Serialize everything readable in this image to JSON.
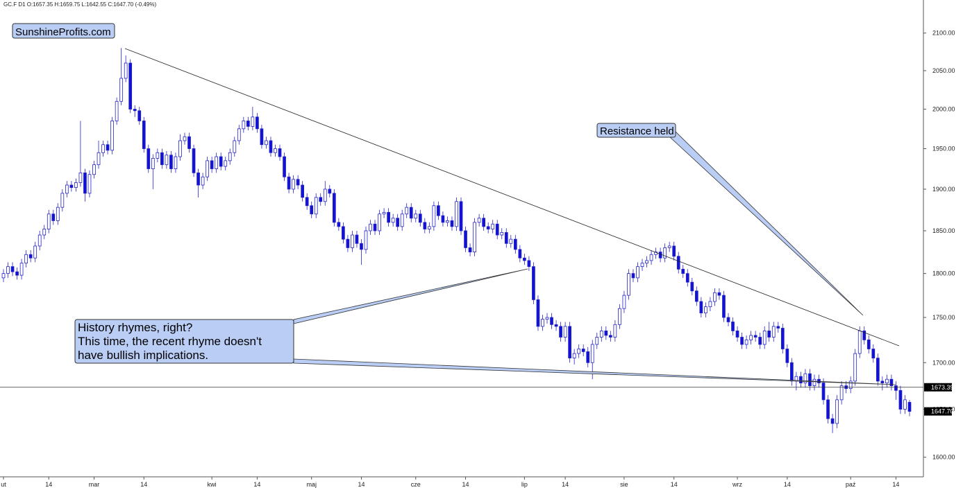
{
  "chart_data": {
    "type": "candlestick",
    "header": "GC.F  D1  O:1657.35  H:1659.75  L:1642.55  C:1647.70  (-0.49%)",
    "watermark": "SunshineProfits.com",
    "annotations": [
      "Resistance held",
      "History rhymes, right?",
      "This time, the recent rhyme doesn't",
      "have bullish implications."
    ],
    "log_scale": true,
    "up_color": "#ffffff",
    "down_color": "#1212d4",
    "outline_color": "#2323c8",
    "ylim": [
      1580,
      2145
    ],
    "yticks": [
      {
        "value": 1600,
        "label": "1600.00"
      },
      {
        "value": 1650,
        "label": "1650.00"
      },
      {
        "value": 1700,
        "label": "1700.00"
      },
      {
        "value": 1750,
        "label": "1750.00"
      },
      {
        "value": 1800,
        "label": "1800.00"
      },
      {
        "value": 1850,
        "label": "1850.00"
      },
      {
        "value": 1900,
        "label": "1900.00"
      },
      {
        "value": 1950,
        "label": "1950.00"
      },
      {
        "value": 2000,
        "label": "2000.00"
      },
      {
        "value": 2050,
        "label": "2050.00"
      },
      {
        "value": 2100,
        "label": "2100.00"
      }
    ],
    "hline": {
      "value": 1673.39,
      "label": "1673.39"
    },
    "last_label": "1647.70",
    "categories": [
      "ut",
      null,
      null,
      null,
      null,
      null,
      null,
      null,
      null,
      null,
      "14",
      null,
      null,
      null,
      null,
      null,
      null,
      null,
      null,
      null,
      "mar",
      null,
      null,
      null,
      null,
      null,
      null,
      null,
      null,
      null,
      null,
      "14",
      null,
      null,
      null,
      null,
      null,
      null,
      null,
      null,
      null,
      null,
      null,
      null,
      null,
      null,
      "kwi",
      null,
      null,
      null,
      null,
      null,
      null,
      null,
      null,
      null,
      "14",
      null,
      null,
      null,
      null,
      null,
      null,
      null,
      null,
      null,
      null,
      null,
      "maj",
      null,
      null,
      null,
      null,
      null,
      null,
      null,
      null,
      null,
      null,
      "14",
      null,
      null,
      null,
      null,
      null,
      null,
      null,
      null,
      null,
      null,
      null,
      "cze",
      null,
      null,
      null,
      null,
      null,
      null,
      null,
      null,
      null,
      null,
      "14",
      null,
      null,
      null,
      null,
      null,
      null,
      null,
      null,
      null,
      null,
      null,
      null,
      "lip",
      null,
      null,
      null,
      null,
      null,
      null,
      null,
      null,
      "14",
      null,
      null,
      null,
      null,
      null,
      null,
      null,
      null,
      null,
      null,
      null,
      null,
      "sie",
      null,
      null,
      null,
      null,
      null,
      null,
      null,
      null,
      null,
      null,
      "14",
      null,
      null,
      null,
      null,
      null,
      null,
      null,
      null,
      null,
      null,
      null,
      null,
      null,
      "wrz",
      null,
      null,
      null,
      null,
      null,
      null,
      null,
      null,
      null,
      null,
      "14",
      null,
      null,
      null,
      null,
      null,
      null,
      null,
      null,
      null,
      null,
      null,
      null,
      null,
      "paź",
      null,
      null,
      null,
      null,
      null,
      null,
      null,
      null,
      null,
      "14",
      null,
      null,
      null
    ],
    "open": [
      1795,
      1800,
      1808,
      1802,
      1798,
      1812,
      1822,
      1818,
      1832,
      1845,
      1852,
      1870,
      1862,
      1878,
      1895,
      1905,
      1902,
      1908,
      1920,
      1895,
      1918,
      1930,
      1945,
      1955,
      1948,
      1985,
      2010,
      2040,
      2060,
      2000,
      1998,
      1985,
      1950,
      1925,
      1938,
      1945,
      1930,
      1942,
      1925,
      1940,
      1960,
      1965,
      1950,
      1920,
      1905,
      1915,
      1935,
      1925,
      1940,
      1928,
      1935,
      1945,
      1960,
      1975,
      1985,
      1978,
      1990,
      1975,
      1955,
      1960,
      1945,
      1950,
      1940,
      1915,
      1900,
      1912,
      1905,
      1890,
      1880,
      1870,
      1890,
      1885,
      1900,
      1895,
      1860,
      1855,
      1840,
      1830,
      1845,
      1835,
      1828,
      1850,
      1858,
      1850,
      1870,
      1872,
      1860,
      1865,
      1855,
      1870,
      1878,
      1865,
      1870,
      1860,
      1852,
      1855,
      1880,
      1868,
      1860,
      1862,
      1855,
      1885,
      1850,
      1830,
      1825,
      1860,
      1865,
      1855,
      1852,
      1858,
      1845,
      1848,
      1835,
      1840,
      1828,
      1818,
      1815,
      1808,
      1770,
      1740,
      1748,
      1750,
      1742,
      1740,
      1728,
      1740,
      1705,
      1710,
      1715,
      1712,
      1700,
      1720,
      1728,
      1735,
      1730,
      1728,
      1742,
      1760,
      1775,
      1800,
      1795,
      1808,
      1812,
      1815,
      1822,
      1825,
      1818,
      1830,
      1832,
      1820,
      1805,
      1800,
      1790,
      1780,
      1768,
      1755,
      1762,
      1768,
      1778,
      1775,
      1750,
      1745,
      1735,
      1728,
      1720,
      1725,
      1730,
      1728,
      1720,
      1735,
      1728,
      1740,
      1738,
      1715,
      1700,
      1680,
      1685,
      1678,
      1688,
      1675,
      1682,
      1678,
      1660,
      1640,
      1635,
      1660,
      1675,
      1672,
      1680,
      1710,
      1735,
      1725,
      1715,
      1705,
      1680,
      1678,
      1682,
      1675,
      1670,
      1650,
      1657.35
    ],
    "high": [
      1805,
      1813,
      1813,
      1807,
      1817,
      1827,
      1827,
      1837,
      1850,
      1857,
      1875,
      1875,
      1883,
      1900,
      1910,
      1910,
      1913,
      1985,
      1925,
      1923,
      1935,
      1960,
      1960,
      1960,
      1990,
      2015,
      2080,
      2070,
      2065,
      2005,
      2003,
      1990,
      1955,
      1943,
      1950,
      1950,
      1947,
      1947,
      1945,
      1968,
      1970,
      1970,
      1955,
      1925,
      1920,
      1940,
      1940,
      1945,
      1945,
      1940,
      1950,
      1965,
      1980,
      1990,
      1990,
      2003,
      1995,
      1980,
      1965,
      1965,
      1955,
      1955,
      1945,
      1920,
      1917,
      1917,
      1910,
      1895,
      1885,
      1895,
      1895,
      1910,
      1905,
      1900,
      1865,
      1860,
      1845,
      1850,
      1850,
      1840,
      1855,
      1863,
      1863,
      1875,
      1877,
      1877,
      1870,
      1870,
      1875,
      1883,
      1883,
      1875,
      1875,
      1865,
      1860,
      1885,
      1885,
      1873,
      1867,
      1867,
      1890,
      1890,
      1855,
      1835,
      1865,
      1870,
      1870,
      1860,
      1863,
      1863,
      1853,
      1853,
      1845,
      1845,
      1833,
      1823,
      1820,
      1813,
      1775,
      1753,
      1755,
      1755,
      1747,
      1745,
      1745,
      1745,
      1715,
      1720,
      1720,
      1717,
      1725,
      1733,
      1740,
      1740,
      1735,
      1747,
      1765,
      1780,
      1805,
      1805,
      1813,
      1817,
      1820,
      1827,
      1830,
      1830,
      1835,
      1837,
      1837,
      1825,
      1810,
      1805,
      1795,
      1785,
      1773,
      1767,
      1773,
      1783,
      1783,
      1780,
      1755,
      1750,
      1740,
      1733,
      1730,
      1735,
      1735,
      1733,
      1740,
      1745,
      1745,
      1745,
      1743,
      1720,
      1705,
      1690,
      1690,
      1693,
      1693,
      1687,
      1687,
      1683,
      1665,
      1645,
      1665,
      1680,
      1680,
      1685,
      1715,
      1740,
      1740,
      1730,
      1720,
      1710,
      1685,
      1687,
      1687,
      1680,
      1675,
      1665,
      1659.75
    ],
    "low": [
      1790,
      1795,
      1797,
      1793,
      1793,
      1807,
      1813,
      1813,
      1827,
      1840,
      1847,
      1857,
      1857,
      1873,
      1890,
      1897,
      1897,
      1903,
      1885,
      1890,
      1913,
      1925,
      1940,
      1943,
      1943,
      1980,
      2005,
      2035,
      1995,
      1990,
      1980,
      1945,
      1920,
      1900,
      1933,
      1925,
      1925,
      1920,
      1920,
      1935,
      1955,
      1945,
      1915,
      1890,
      1900,
      1910,
      1920,
      1920,
      1923,
      1923,
      1930,
      1940,
      1955,
      1970,
      1973,
      1973,
      1970,
      1950,
      1950,
      1940,
      1940,
      1935,
      1910,
      1895,
      1895,
      1900,
      1885,
      1875,
      1865,
      1865,
      1880,
      1880,
      1890,
      1855,
      1850,
      1835,
      1825,
      1825,
      1830,
      1810,
      1823,
      1845,
      1845,
      1845,
      1865,
      1855,
      1855,
      1850,
      1850,
      1865,
      1860,
      1860,
      1855,
      1847,
      1847,
      1850,
      1863,
      1855,
      1855,
      1850,
      1850,
      1845,
      1825,
      1820,
      1820,
      1855,
      1850,
      1847,
      1847,
      1840,
      1840,
      1830,
      1830,
      1823,
      1813,
      1810,
      1803,
      1765,
      1735,
      1735,
      1743,
      1737,
      1735,
      1723,
      1723,
      1700,
      1698,
      1705,
      1707,
      1695,
      1682,
      1715,
      1723,
      1725,
      1723,
      1723,
      1737,
      1755,
      1770,
      1790,
      1790,
      1803,
      1807,
      1810,
      1817,
      1813,
      1813,
      1825,
      1815,
      1800,
      1795,
      1785,
      1775,
      1763,
      1750,
      1750,
      1757,
      1763,
      1770,
      1745,
      1740,
      1730,
      1723,
      1715,
      1715,
      1720,
      1723,
      1715,
      1715,
      1723,
      1723,
      1733,
      1710,
      1695,
      1675,
      1670,
      1673,
      1673,
      1670,
      1670,
      1673,
      1655,
      1635,
      1625,
      1630,
      1655,
      1667,
      1667,
      1675,
      1705,
      1720,
      1710,
      1700,
      1675,
      1670,
      1673,
      1670,
      1660,
      1645,
      1645,
      1642.55
    ],
    "close": [
      1800,
      1808,
      1802,
      1798,
      1812,
      1822,
      1818,
      1832,
      1845,
      1852,
      1870,
      1862,
      1878,
      1895,
      1905,
      1902,
      1908,
      1920,
      1895,
      1918,
      1930,
      1945,
      1955,
      1948,
      1985,
      2010,
      2040,
      2060,
      2000,
      1998,
      1985,
      1950,
      1925,
      1938,
      1945,
      1930,
      1942,
      1925,
      1940,
      1960,
      1965,
      1950,
      1920,
      1905,
      1915,
      1935,
      1925,
      1940,
      1928,
      1935,
      1945,
      1960,
      1975,
      1985,
      1978,
      1990,
      1975,
      1955,
      1960,
      1945,
      1950,
      1940,
      1915,
      1900,
      1912,
      1905,
      1890,
      1880,
      1870,
      1890,
      1885,
      1900,
      1895,
      1860,
      1855,
      1840,
      1830,
      1845,
      1835,
      1828,
      1850,
      1858,
      1850,
      1870,
      1872,
      1860,
      1865,
      1855,
      1870,
      1878,
      1865,
      1870,
      1860,
      1852,
      1855,
      1880,
      1868,
      1860,
      1862,
      1855,
      1885,
      1850,
      1830,
      1825,
      1860,
      1865,
      1855,
      1852,
      1858,
      1845,
      1848,
      1835,
      1840,
      1828,
      1818,
      1815,
      1808,
      1770,
      1740,
      1748,
      1750,
      1742,
      1740,
      1728,
      1740,
      1705,
      1710,
      1715,
      1712,
      1700,
      1720,
      1728,
      1735,
      1730,
      1728,
      1742,
      1760,
      1775,
      1800,
      1795,
      1808,
      1812,
      1815,
      1822,
      1825,
      1818,
      1830,
      1832,
      1820,
      1805,
      1800,
      1790,
      1780,
      1768,
      1755,
      1762,
      1768,
      1778,
      1775,
      1750,
      1745,
      1735,
      1728,
      1720,
      1725,
      1730,
      1728,
      1720,
      1735,
      1728,
      1740,
      1738,
      1715,
      1700,
      1680,
      1685,
      1678,
      1688,
      1675,
      1682,
      1678,
      1660,
      1640,
      1635,
      1660,
      1675,
      1672,
      1680,
      1710,
      1735,
      1725,
      1715,
      1705,
      1680,
      1678,
      1682,
      1675,
      1670,
      1650,
      1660,
      1647.7
    ]
  }
}
